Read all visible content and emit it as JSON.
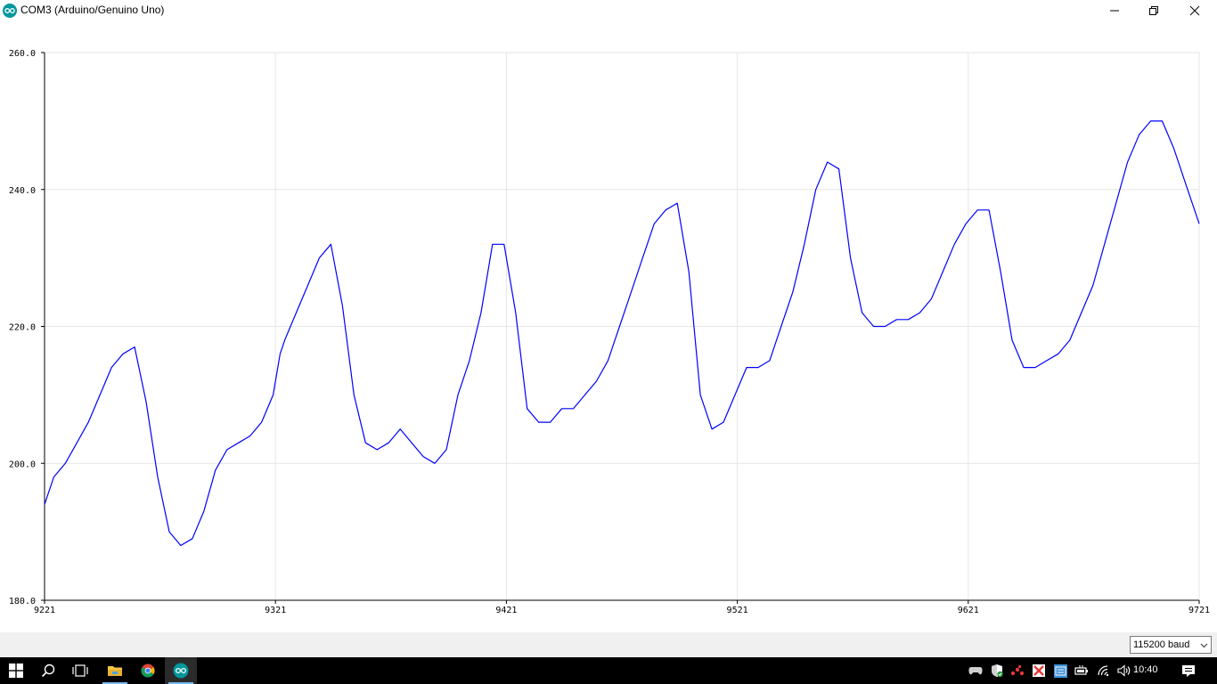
{
  "window": {
    "title": "COM3 (Arduino/Genuino Uno)",
    "icons": [
      "arduino-icon",
      "minimize-icon",
      "restore-icon",
      "close-icon"
    ]
  },
  "chart_data": {
    "type": "line",
    "title": "",
    "xlabel": "",
    "ylabel": "",
    "xlim": [
      9221,
      9721
    ],
    "ylim": [
      180,
      260
    ],
    "x_ticks": [
      "9221",
      "9321",
      "9421",
      "9521",
      "9621",
      "9721"
    ],
    "y_ticks": [
      "260.0",
      "240.0",
      "220.0",
      "200.0",
      "180.0"
    ],
    "grid": true,
    "legend": "none",
    "line_color": "#0000ff",
    "series": [
      {
        "x": [
          9221,
          9225,
          9230,
          9235,
          9240,
          9245,
          9250,
          9255,
          9260,
          9265,
          9270,
          9275,
          9280,
          9285,
          9290,
          9295,
          9300,
          9305,
          9310,
          9315,
          9320,
          9323,
          9325,
          9330,
          9335,
          9340,
          9345,
          9350,
          9355,
          9360,
          9365,
          9370,
          9375,
          9380,
          9385,
          9390,
          9395,
          9400,
          9405,
          9410,
          9412,
          9415,
          9420,
          9425,
          9430,
          9435,
          9440,
          9445,
          9450,
          9455,
          9460,
          9465,
          9470,
          9475,
          9480,
          9485,
          9490,
          9495,
          9500,
          9505,
          9510,
          9515,
          9520,
          9525,
          9530,
          9535,
          9540,
          9545,
          9550,
          9555,
          9560,
          9565,
          9570,
          9575,
          9580,
          9585,
          9590,
          9595,
          9600,
          9605,
          9610,
          9615,
          9620,
          9625,
          9630,
          9635,
          9640,
          9645,
          9650,
          9655,
          9660,
          9665,
          9670,
          9675,
          9680,
          9685,
          9690,
          9695,
          9700,
          9705,
          9710,
          9715,
          9721
        ],
        "values": [
          194,
          198,
          200,
          203,
          206,
          210,
          214,
          216,
          217,
          209,
          198,
          190,
          188,
          189,
          193,
          199,
          202,
          203,
          204,
          206,
          210,
          216,
          218,
          222,
          226,
          230,
          232,
          223,
          210,
          203,
          202,
          203,
          205,
          203,
          201,
          200,
          202,
          210,
          215,
          222,
          226,
          232,
          232,
          222,
          208,
          206,
          206,
          208,
          208,
          210,
          212,
          215,
          220,
          225,
          230,
          235,
          237,
          238,
          228,
          210,
          205,
          206,
          210,
          214,
          214,
          215,
          220,
          225,
          232,
          240,
          244,
          243,
          230,
          222,
          220,
          220,
          221,
          221,
          222,
          224,
          228,
          232,
          235,
          237,
          237,
          228,
          218,
          214,
          214,
          215,
          216,
          218,
          222,
          226,
          232,
          238,
          244,
          248,
          250,
          250,
          246,
          241,
          235
        ]
      }
    ]
  },
  "controls": {
    "baud_rate": "115200 baud"
  },
  "taskbar": {
    "icons": [
      "windows-start-icon",
      "search-icon",
      "task-view-icon",
      "file-explorer-icon",
      "chrome-icon",
      "arduino-icon"
    ],
    "tray_icons": [
      "gamepad-icon",
      "security-shield-icon",
      "network-dots-icon",
      "red-x-icon",
      "keyboard-icon",
      "battery-icon",
      "wifi-icon",
      "volume-icon",
      "notification-icon"
    ],
    "time": "10:40"
  }
}
